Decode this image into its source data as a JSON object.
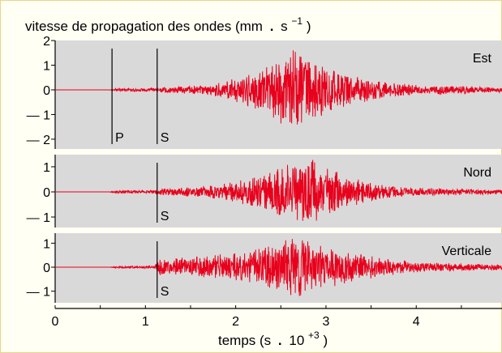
{
  "chart_data": {
    "type": "line",
    "title_text": "vitesse de propagation des ondes (mm",
    "title_dot": ".",
    "title_unit": "s",
    "title_exp": "−1",
    "title_close": ")",
    "xlabel_text": "temps (s",
    "xlabel_dot": ".",
    "xlabel_base": "10",
    "xlabel_exp": "+3",
    "xlabel_close": ")",
    "xlim": [
      0,
      4.95
    ],
    "xticks": [
      "0",
      "1",
      "2",
      "3",
      "4"
    ],
    "xtick_values": [
      0,
      1,
      2,
      3,
      4
    ],
    "arrival_P": 0.63,
    "arrival_S": 1.13,
    "panels": [
      {
        "name": "Est",
        "ylim": [
          -2.2,
          2.2
        ],
        "ytick_values": [
          2,
          1,
          0,
          -1,
          -2
        ],
        "ytick_labels": [
          "2",
          "1",
          "0",
          "— 1",
          "— 2"
        ],
        "markers": [
          "P",
          "S"
        ],
        "envelope_t": [
          0,
          0.6,
          0.7,
          1.1,
          1.2,
          1.7,
          2.0,
          2.3,
          2.45,
          2.6,
          2.75,
          2.85,
          3.0,
          3.3,
          3.6,
          4.0,
          4.95
        ],
        "envelope_a": [
          0,
          0,
          0.07,
          0.07,
          0.12,
          0.2,
          0.5,
          1.0,
          1.4,
          1.7,
          1.5,
          1.3,
          1.0,
          0.6,
          0.35,
          0.2,
          0.12
        ]
      },
      {
        "name": "Nord",
        "ylim": [
          -1.45,
          1.45
        ],
        "ytick_values": [
          1,
          0,
          -1
        ],
        "ytick_labels": [
          "1",
          "0",
          "— 1"
        ],
        "markers": [
          "S"
        ],
        "envelope_t": [
          0,
          0.6,
          0.65,
          1.1,
          1.2,
          1.7,
          2.0,
          2.3,
          2.5,
          2.65,
          2.8,
          2.9,
          3.0,
          3.3,
          3.6,
          4.0,
          4.95
        ],
        "envelope_a": [
          0,
          0,
          0.05,
          0.07,
          0.14,
          0.25,
          0.45,
          0.8,
          1.05,
          1.25,
          1.3,
          1.25,
          1.0,
          0.55,
          0.3,
          0.16,
          0.1
        ]
      },
      {
        "name": "Verticale",
        "ylim": [
          -1.45,
          1.45
        ],
        "ytick_values": [
          1,
          0,
          -1
        ],
        "ytick_labels": [
          "1",
          "0",
          "— 1"
        ],
        "markers": [
          "S"
        ],
        "envelope_t": [
          0,
          0.6,
          0.7,
          1.1,
          1.15,
          1.5,
          2.0,
          2.3,
          2.5,
          2.65,
          2.8,
          3.0,
          3.3,
          3.7,
          4.0,
          4.95
        ],
        "envelope_a": [
          0,
          0,
          0.04,
          0.06,
          0.35,
          0.45,
          0.6,
          0.85,
          1.05,
          1.3,
          1.1,
          0.9,
          0.6,
          0.35,
          0.22,
          0.12
        ]
      }
    ],
    "colors": {
      "signal": "#e8001c",
      "panel_bg": "#d9d9d9",
      "frame_bg": "#fffff4",
      "frame_border": "#e9d58a"
    }
  }
}
